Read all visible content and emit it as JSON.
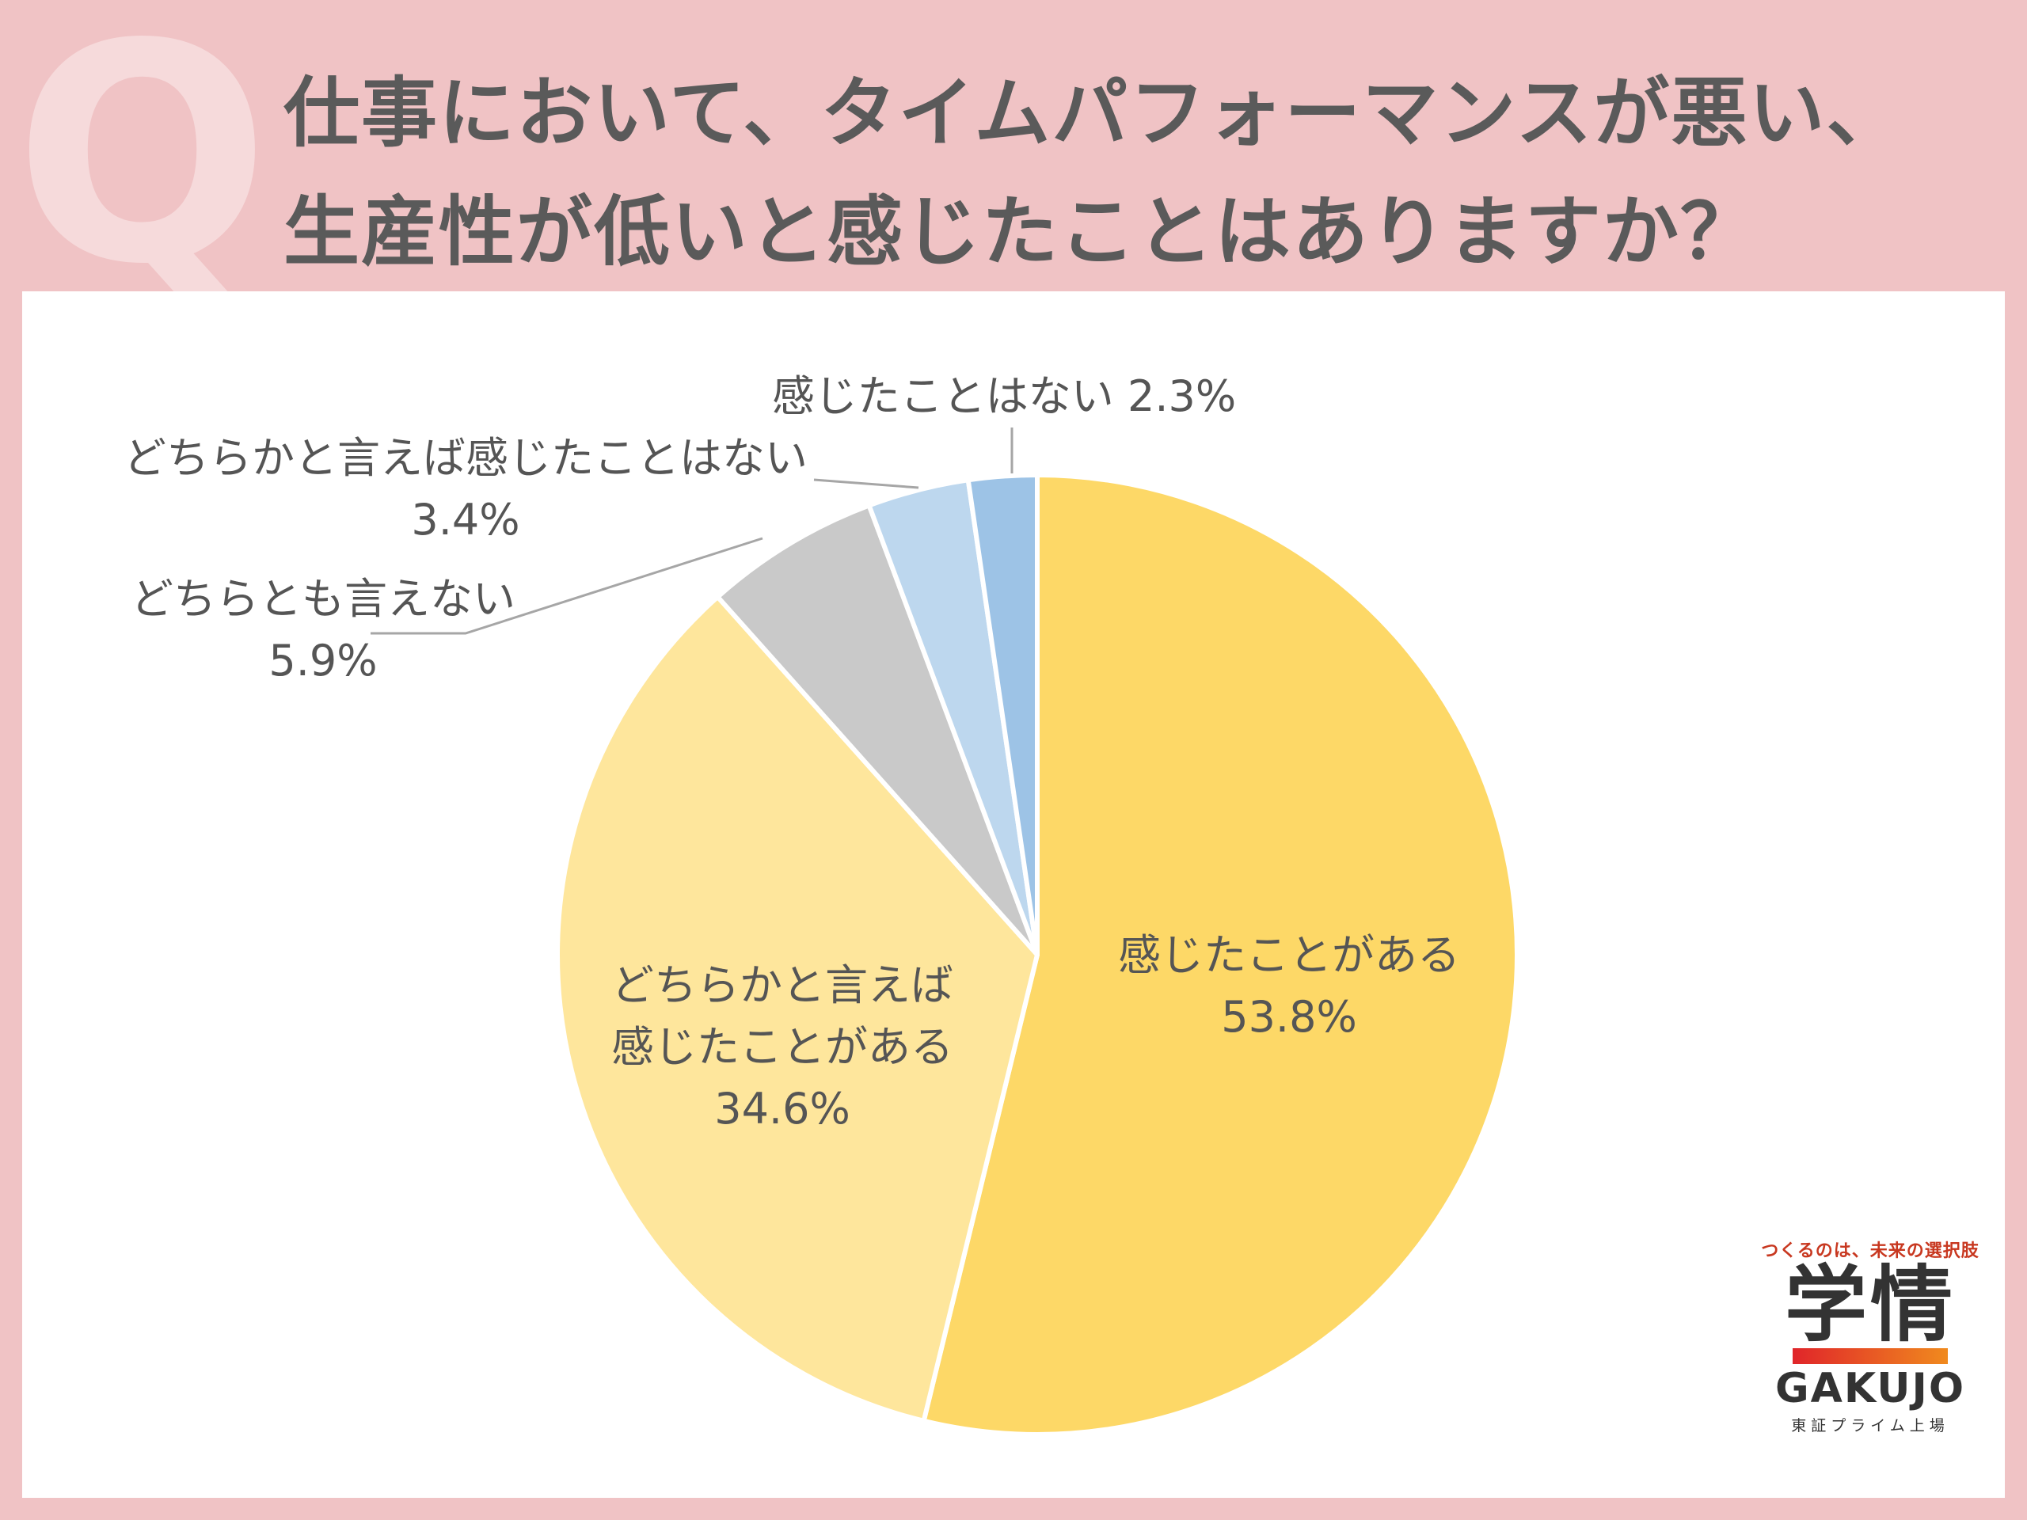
{
  "header": {
    "q_mark": "Q",
    "title_line1": "仕事において、タイムパフォーマンスが悪い、",
    "title_line2": "生産性が低いと感じたことはありますか？"
  },
  "chart_data": {
    "type": "pie",
    "start_angle_deg": 0,
    "direction": "clockwise",
    "slices": [
      {
        "label": "感じたことがある",
        "value": 53.8,
        "value_text": "53.8%",
        "color": "#fdd867"
      },
      {
        "label": "どちらかと言えば感じたことがある",
        "value": 34.6,
        "value_text": "34.6%",
        "color": "#fee69c"
      },
      {
        "label": "どちらとも言えない",
        "value": 5.9,
        "value_text": "5.9%",
        "color": "#c9c9c9"
      },
      {
        "label": "どちらかと言えば感じたことはない",
        "value": 3.4,
        "value_text": "3.4%",
        "color": "#bdd7ee"
      },
      {
        "label": "感じたことはない",
        "value": 2.3,
        "value_text": "2.3%",
        "color": "#9dc3e6"
      }
    ],
    "labels": {
      "s0_line1": "感じたことがある",
      "s0_line2": "53.8%",
      "s1_line1": "どちらかと言えば",
      "s1_line2": "感じたことがある",
      "s1_line3": "34.6%",
      "s2_line1": "どちらとも言えない",
      "s2_line2": "5.9%",
      "s3_line1": "どちらかと言えば感じたことはない",
      "s3_line2": "3.4%",
      "s4_line1": "感じたことはない 2.3%"
    }
  },
  "logo": {
    "tagline": "つくるのは、未来の選択肢",
    "name_jp": "学情",
    "name_en": "GAKUJO",
    "listing": "東証プライム上場"
  }
}
